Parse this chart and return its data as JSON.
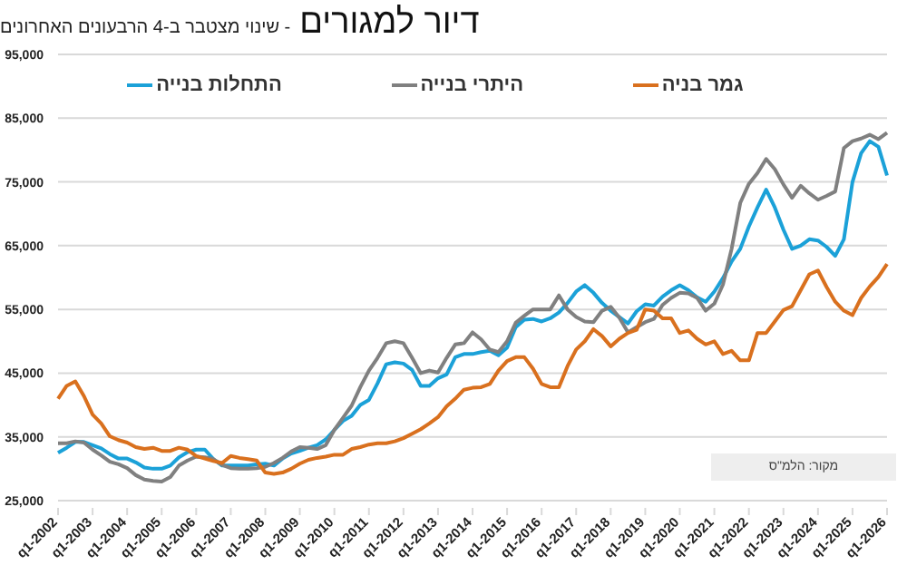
{
  "chart_data": {
    "type": "line",
    "title": "דיור למגורים",
    "subtitle": "- שינוי מצטבר ב-4 הרבעונים האחרונים",
    "annotations": [
      "מקור: הלמ\"ס"
    ],
    "categories": [
      "q1-2002",
      null,
      null,
      null,
      "q1-2003",
      null,
      null,
      null,
      "q1-2004",
      null,
      null,
      null,
      "q1-2005",
      null,
      null,
      null,
      "q1-2006",
      null,
      null,
      null,
      "q1-2007",
      null,
      null,
      null,
      "q1-2008",
      null,
      null,
      null,
      "q1-2009",
      null,
      null,
      null,
      "q1-2010",
      null,
      null,
      null,
      "q1-2011",
      null,
      null,
      null,
      "q1-2012",
      null,
      null,
      null,
      "q1-2013",
      null,
      null,
      null,
      "q1-2014",
      null,
      null,
      null,
      "q1-2015",
      null,
      null,
      null,
      "q1-2016",
      null,
      null,
      null,
      "q1-2017",
      null,
      null,
      null,
      "q1-2018",
      null,
      null,
      null,
      "q1-2019",
      null,
      null,
      null,
      "q1-2020",
      null,
      null,
      null,
      "q1-2021",
      null,
      null,
      null,
      "q1-2022",
      null,
      null,
      null,
      "q1-2023",
      null,
      null,
      null,
      "q1-2024",
      null,
      null,
      null,
      "q1-2025",
      null,
      null,
      null,
      "q1-2026"
    ],
    "series": [
      {
        "name": "התחלות בנייה",
        "color": "#1ba1d8",
        "values": [
          32500,
          33300,
          34200,
          34200,
          33700,
          33200,
          32300,
          31600,
          31600,
          31000,
          30200,
          30000,
          30000,
          30500,
          31800,
          32600,
          33000,
          33000,
          31500,
          30500,
          30500,
          30500,
          30500,
          30700,
          30800,
          30500,
          31600,
          32400,
          32800,
          33300,
          33700,
          34600,
          36100,
          37500,
          38300,
          40000,
          40800,
          43400,
          46400,
          46700,
          46500,
          45500,
          43000,
          43000,
          44200,
          44800,
          47500,
          48000,
          48000,
          48300,
          48500,
          47800,
          49000,
          52200,
          53400,
          53500,
          53100,
          53600,
          54500,
          56000,
          57800,
          58800,
          57600,
          56000,
          54800,
          53800,
          52800,
          54700,
          55800,
          55600,
          57000,
          58000,
          58800,
          58000,
          56900,
          56200,
          57800,
          59900,
          62500,
          64500,
          68000,
          71000,
          73800,
          71000,
          67500,
          64500,
          65000,
          66000,
          65800,
          64800,
          63400,
          66000,
          75000,
          79500,
          81400,
          80500,
          76000
        ]
      },
      {
        "name": "היתרי בנייה",
        "color": "#808080",
        "values": [
          34000,
          34000,
          34300,
          34100,
          33000,
          32100,
          31100,
          30700,
          30100,
          29000,
          28300,
          28100,
          28000,
          28700,
          30500,
          31300,
          31900,
          31800,
          31500,
          30600,
          30100,
          30000,
          30000,
          30100,
          30300,
          30900,
          31700,
          32700,
          33400,
          33300,
          33100,
          33700,
          36100,
          38000,
          39900,
          42800,
          45400,
          47400,
          49700,
          50000,
          49700,
          47400,
          45000,
          45400,
          45100,
          47400,
          49500,
          49700,
          51400,
          50300,
          48700,
          48300,
          50000,
          52900,
          54000,
          55000,
          55000,
          55000,
          57200,
          55000,
          53800,
          53100,
          53000,
          54800,
          55400,
          53700,
          51400,
          52200,
          53000,
          53500,
          55700,
          56800,
          57600,
          57500,
          56800,
          54800,
          55900,
          58900,
          64500,
          71700,
          74700,
          76400,
          78600,
          77000,
          74600,
          72500,
          74400,
          73200,
          72200,
          72800,
          73500,
          80300,
          81400,
          81800,
          82400,
          81700,
          82700
        ]
      },
      {
        "name": "גמר בניה",
        "color": "#d9701e",
        "values": [
          41000,
          43000,
          43700,
          41400,
          38500,
          37100,
          35100,
          34500,
          34100,
          33400,
          33100,
          33300,
          32800,
          32800,
          33300,
          33000,
          32000,
          31600,
          31200,
          30900,
          32000,
          31700,
          31500,
          31300,
          29400,
          29200,
          29400,
          30000,
          30800,
          31400,
          31700,
          31900,
          32200,
          32200,
          33100,
          33400,
          33800,
          34000,
          34000,
          34300,
          34800,
          35500,
          36200,
          37100,
          38100,
          39800,
          41000,
          42400,
          42700,
          42800,
          43300,
          45400,
          46900,
          47500,
          47500,
          45700,
          43300,
          42800,
          42800,
          46100,
          48700,
          50000,
          51900,
          50800,
          49200,
          50400,
          51300,
          51800,
          55000,
          54800,
          53600,
          53600,
          51300,
          51700,
          50400,
          49500,
          50000,
          48000,
          48500,
          47000,
          47000,
          51300,
          51300,
          53100,
          54900,
          55500,
          58000,
          60500,
          61100,
          58500,
          56200,
          54800,
          54100,
          56800,
          58600,
          60100,
          62100
        ]
      }
    ],
    "ylim": [
      25000,
      95000
    ],
    "yticks": [
      {
        "value": 25000,
        "label": "25,000"
      },
      {
        "value": 35000,
        "label": "35,000"
      },
      {
        "value": 45000,
        "label": "45,000"
      },
      {
        "value": 55000,
        "label": "55,000"
      },
      {
        "value": 65000,
        "label": "65,000"
      },
      {
        "value": 75000,
        "label": "75,000"
      },
      {
        "value": 85000,
        "label": "85,000"
      },
      {
        "value": 95000,
        "label": "95,000"
      }
    ],
    "grid": "y",
    "legend": "top",
    "marker": "none",
    "line_style": "solid"
  }
}
